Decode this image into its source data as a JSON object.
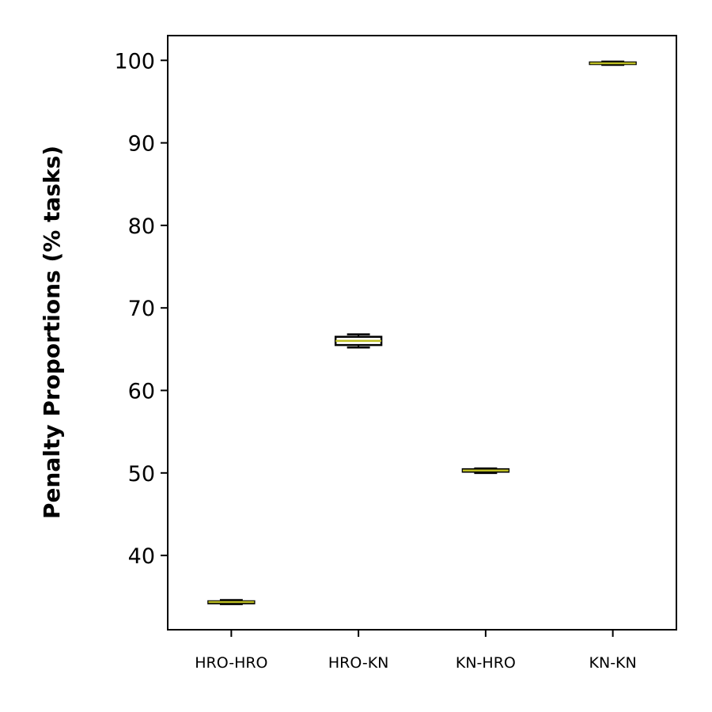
{
  "chart_data": {
    "type": "box",
    "categories": [
      "HRO-HRO",
      "HRO-KN",
      "KN-HRO",
      "KN-KN"
    ],
    "boxes": [
      {
        "whisker_low": 34.1,
        "q1": 34.2,
        "median": 34.35,
        "q3": 34.45,
        "whisker_high": 34.6
      },
      {
        "whisker_low": 65.2,
        "q1": 65.5,
        "median": 66.0,
        "q3": 66.5,
        "whisker_high": 66.8
      },
      {
        "whisker_low": 50.0,
        "q1": 50.15,
        "median": 50.3,
        "q3": 50.45,
        "whisker_high": 50.55
      },
      {
        "whisker_low": 99.45,
        "q1": 99.55,
        "median": 99.65,
        "q3": 99.75,
        "whisker_high": 99.85
      }
    ],
    "xlabel": "",
    "ylabel": "Penalty Proportions (% tasks)",
    "ylim": [
      31,
      103
    ],
    "yticks": [
      40,
      50,
      60,
      70,
      80,
      90,
      100
    ],
    "grid": false,
    "colors": {
      "box": "#000000",
      "median": "#bcbd22"
    }
  }
}
